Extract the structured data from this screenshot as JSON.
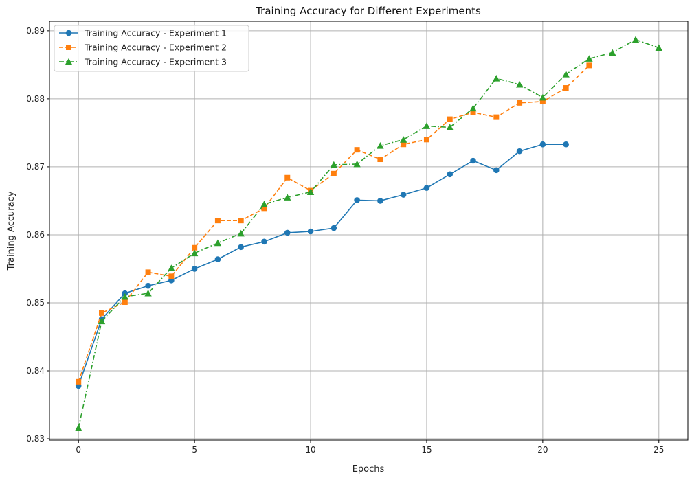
{
  "chart_data": {
    "type": "line",
    "title": "Training Accuracy for Different Experiments",
    "xlabel": "Epochs",
    "ylabel": "Training Accuracy",
    "xlim": [
      -1.25,
      26.25
    ],
    "ylim": [
      0.8298,
      0.8914
    ],
    "xticks": [
      0,
      5,
      10,
      15,
      20,
      25
    ],
    "yticks": [
      0.83,
      0.84,
      0.85,
      0.86,
      0.87,
      0.88,
      0.89
    ],
    "xtick_labels": [
      "0",
      "5",
      "10",
      "15",
      "20",
      "25"
    ],
    "ytick_labels": [
      "0.83",
      "0.84",
      "0.85",
      "0.86",
      "0.87",
      "0.88",
      "0.89"
    ],
    "grid": true,
    "legend_position": "top-left",
    "series": [
      {
        "name": "Training Accuracy - Experiment 1",
        "color": "#1f77b4",
        "marker": "circle",
        "linestyle": "solid",
        "x": [
          0,
          1,
          2,
          3,
          4,
          5,
          6,
          7,
          8,
          9,
          10,
          11,
          12,
          13,
          14,
          15,
          16,
          17,
          18,
          19,
          20,
          21
        ],
        "values": [
          0.8378,
          0.8476,
          0.8514,
          0.8525,
          0.8533,
          0.855,
          0.8564,
          0.8582,
          0.859,
          0.8603,
          0.8605,
          0.861,
          0.8651,
          0.865,
          0.8659,
          0.8669,
          0.8689,
          0.8709,
          0.8695,
          0.8723,
          0.8733,
          0.8733
        ]
      },
      {
        "name": "Training Accuracy - Experiment 2",
        "color": "#ff7f0e",
        "marker": "square",
        "linestyle": "dashed",
        "x": [
          0,
          1,
          2,
          3,
          4,
          5,
          6,
          7,
          8,
          9,
          10,
          11,
          12,
          13,
          14,
          15,
          16,
          17,
          18,
          19,
          20,
          21,
          22
        ],
        "values": [
          0.8384,
          0.8485,
          0.8501,
          0.8545,
          0.8539,
          0.8581,
          0.8621,
          0.8621,
          0.8639,
          0.8684,
          0.8665,
          0.869,
          0.8725,
          0.8711,
          0.8733,
          0.874,
          0.877,
          0.878,
          0.8773,
          0.8794,
          0.8796,
          0.8816,
          0.8849
        ]
      },
      {
        "name": "Training Accuracy - Experiment 3",
        "color": "#2ca02c",
        "marker": "triangle",
        "linestyle": "dashdot",
        "x": [
          0,
          1,
          2,
          3,
          4,
          5,
          6,
          7,
          8,
          9,
          10,
          11,
          12,
          13,
          14,
          15,
          16,
          17,
          18,
          19,
          20,
          21,
          22,
          23,
          24,
          25
        ],
        "values": [
          0.8316,
          0.8473,
          0.8509,
          0.8514,
          0.8551,
          0.8573,
          0.8588,
          0.8602,
          0.8645,
          0.8655,
          0.8663,
          0.8703,
          0.8704,
          0.8731,
          0.874,
          0.876,
          0.8758,
          0.8786,
          0.883,
          0.8821,
          0.8802,
          0.8836,
          0.8859,
          0.8868,
          0.8887,
          0.8875
        ]
      }
    ]
  }
}
